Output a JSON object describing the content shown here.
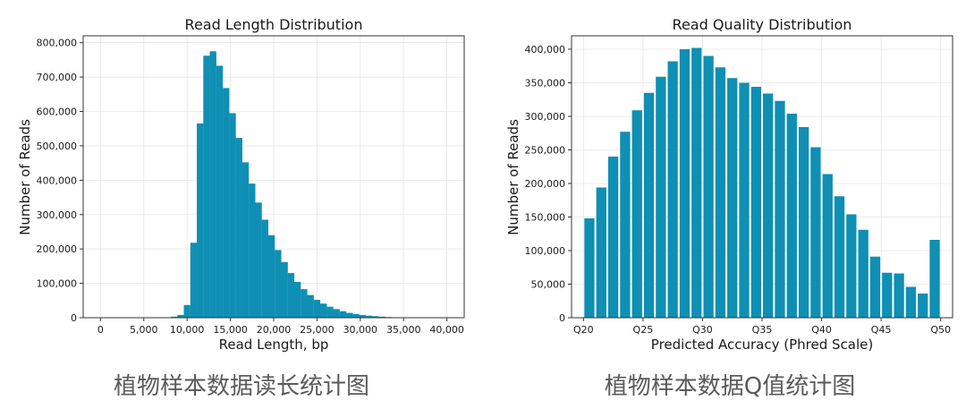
{
  "colors": {
    "bar": "#0f8fb3",
    "grid": "#e6e6e6",
    "caption": "#5b5b5b"
  },
  "captions": [
    "植物样本数据读长统计图",
    "植物样本数据Q值统计图"
  ],
  "chart_data": [
    {
      "type": "bar",
      "title": "Read Length Distribution",
      "xlabel": "Read Length, bp",
      "ylabel": "Number of Reads",
      "xlim": [
        -2000,
        42000
      ],
      "ylim": [
        0,
        820000
      ],
      "xticks": [
        0,
        5000,
        10000,
        15000,
        20000,
        25000,
        30000,
        35000,
        40000
      ],
      "xtick_labels": [
        "0",
        "5,000",
        "10,000",
        "15,000",
        "20,000",
        "25,000",
        "30,000",
        "35,000",
        "40,000"
      ],
      "yticks": [
        0,
        100000,
        200000,
        300000,
        400000,
        500000,
        600000,
        700000,
        800000
      ],
      "ytick_labels": [
        "0",
        "100,000",
        "200,000",
        "300,000",
        "400,000",
        "500,000",
        "600,000",
        "700,000",
        "800,000"
      ],
      "bin_width": 760,
      "x": [
        8500,
        9250,
        10000,
        10750,
        11500,
        12250,
        13000,
        13750,
        14500,
        15250,
        16000,
        16750,
        17500,
        18250,
        19000,
        19750,
        20500,
        21250,
        22000,
        22750,
        23500,
        24250,
        25000,
        25750,
        26500,
        27250,
        28000,
        28750,
        29500,
        30250,
        31000,
        31750,
        32500,
        33250,
        34000
      ],
      "values": [
        3000,
        8000,
        37000,
        218000,
        565000,
        762000,
        775000,
        733000,
        668000,
        595000,
        523000,
        452000,
        390000,
        335000,
        285000,
        240000,
        197000,
        162000,
        130000,
        104000,
        83000,
        66000,
        52000,
        41000,
        32000,
        25000,
        19000,
        14000,
        11000,
        8000,
        6000,
        4500,
        3000,
        2000,
        1000
      ]
    },
    {
      "type": "bar",
      "title": "Read Quality Distribution",
      "xlabel": "Predicted Accuracy (Phred Scale)",
      "ylabel": "Number of Reads",
      "xlim": [
        19,
        51
      ],
      "ylim": [
        0,
        420000
      ],
      "xticks": [
        20,
        25,
        30,
        35,
        40,
        45,
        50
      ],
      "xtick_labels": [
        "Q20",
        "Q25",
        "Q30",
        "Q35",
        "Q40",
        "Q45",
        "Q50"
      ],
      "yticks": [
        0,
        50000,
        100000,
        150000,
        200000,
        250000,
        300000,
        350000,
        400000
      ],
      "ytick_labels": [
        "0",
        "50,000",
        "100,000",
        "150,000",
        "200,000",
        "250,000",
        "300,000",
        "350,000",
        "400,000"
      ],
      "bin_width": 0.85,
      "x": [
        20.5,
        21.5,
        22.5,
        23.5,
        24.5,
        25.5,
        26.5,
        27.5,
        28.5,
        29.5,
        30.5,
        31.5,
        32.5,
        33.5,
        34.5,
        35.5,
        36.5,
        37.5,
        38.5,
        39.5,
        40.5,
        41.5,
        42.5,
        43.5,
        44.5,
        45.5,
        46.5,
        47.5,
        48.5,
        49.5
      ],
      "values": [
        148000,
        194000,
        240000,
        277000,
        309000,
        335000,
        359000,
        382000,
        400000,
        402000,
        390000,
        373000,
        357000,
        350000,
        344000,
        334000,
        323000,
        304000,
        284000,
        254000,
        214000,
        181000,
        154000,
        131000,
        91000,
        67000,
        66000,
        46000,
        36000,
        116000
      ]
    }
  ]
}
